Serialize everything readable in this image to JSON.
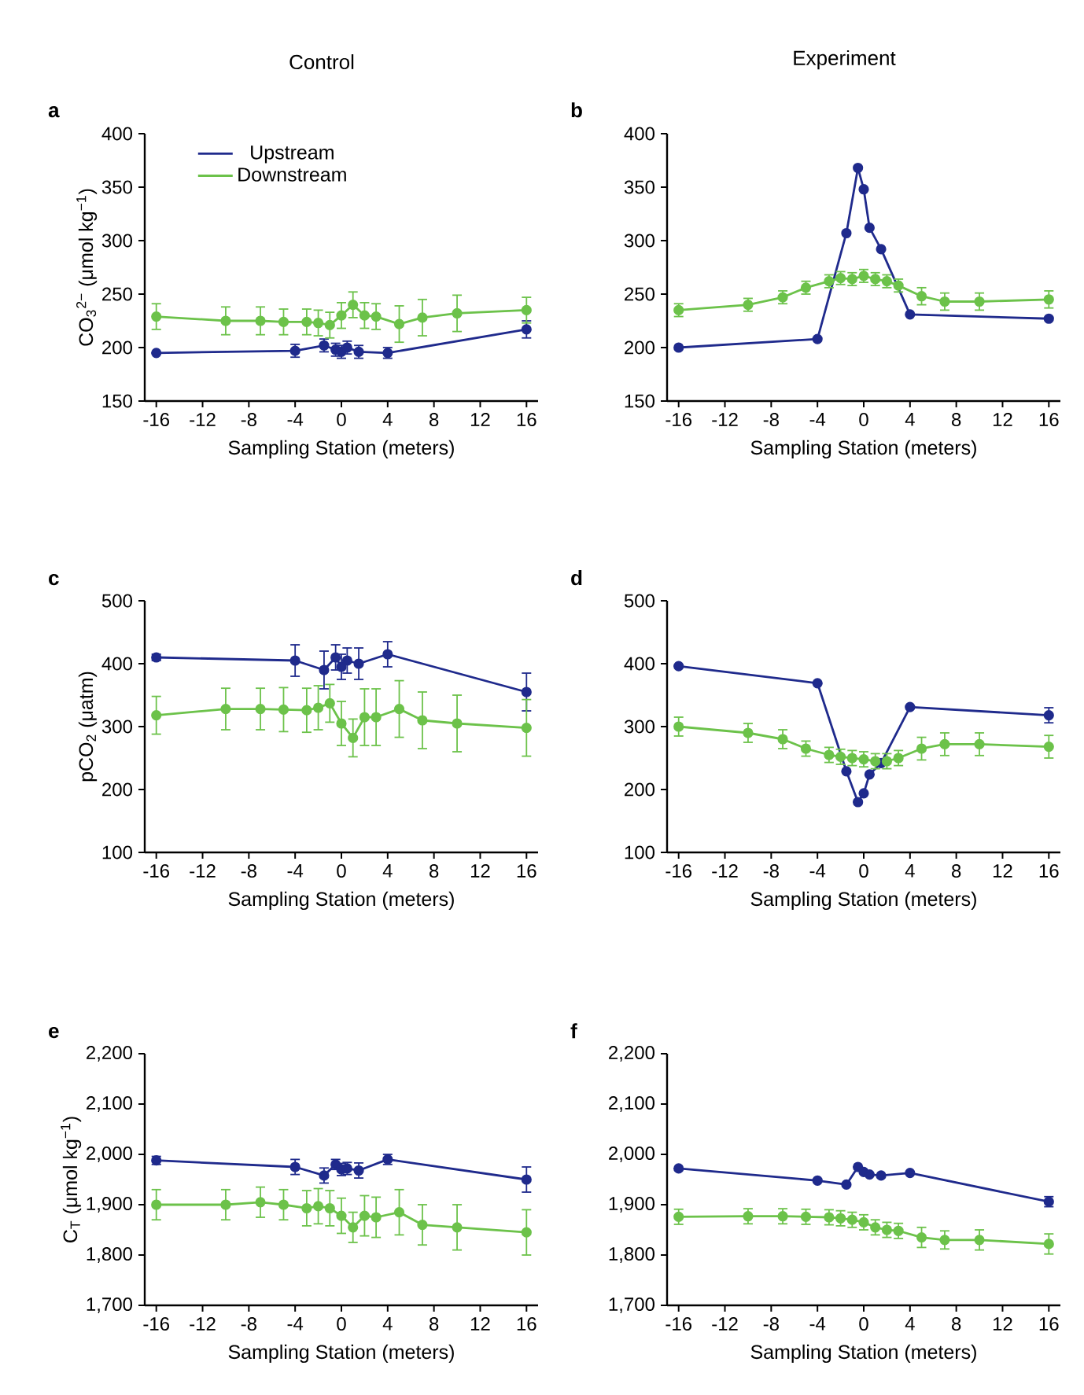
{
  "chart_data": [
    {
      "type": "line",
      "title": "a",
      "subtitle": "Control",
      "xlabel": "Sampling Station (meters)",
      "ylabel": "CO$_{3}$$^{2−}$ (μmol kg$^{−1}$)",
      "xlim": [
        -17,
        17
      ],
      "xticks": [
        -16,
        -12,
        -8,
        -4,
        0,
        4,
        8,
        12,
        16
      ],
      "ylim": [
        150,
        400
      ],
      "yticks": [
        150,
        200,
        250,
        300,
        350,
        400
      ],
      "marker": "circle",
      "legend": "top left",
      "series": [
        {
          "name": "Upstream",
          "color": "#1f2a8c",
          "x": [
            -16,
            -4,
            -1.5,
            -0.5,
            0,
            0.5,
            1.5,
            4,
            16
          ],
          "values": [
            195,
            197,
            202,
            198,
            196,
            200,
            196,
            195,
            217
          ],
          "errors": [
            null,
            6,
            6,
            6,
            6,
            6,
            6,
            5,
            8
          ]
        },
        {
          "name": "Downstream",
          "color": "#6cc24a",
          "x": [
            -16,
            -10,
            -7,
            -5,
            -3,
            -2,
            -1,
            0,
            1,
            2,
            3,
            5,
            7,
            10,
            16
          ],
          "values": [
            229,
            225,
            225,
            224,
            224,
            223,
            221,
            230,
            240,
            230,
            229,
            222,
            228,
            232,
            235
          ],
          "errors": [
            12,
            13,
            13,
            12,
            12,
            12,
            12,
            12,
            12,
            12,
            12,
            17,
            17,
            17,
            12
          ]
        }
      ]
    },
    {
      "type": "line",
      "title": "b",
      "subtitle": "Experiment",
      "xlabel": "Sampling Station (meters)",
      "xlim": [
        -17,
        17
      ],
      "xticks": [
        -16,
        -12,
        -8,
        -4,
        0,
        4,
        8,
        12,
        16
      ],
      "ylim": [
        150,
        400
      ],
      "yticks": [
        150,
        200,
        250,
        300,
        350,
        400
      ],
      "marker": "circle",
      "series": [
        {
          "color": "#1f2a8c",
          "x": [
            -16,
            -4,
            -1.5,
            -0.5,
            0,
            0.5,
            1.5,
            4,
            16
          ],
          "values": [
            200,
            208,
            307,
            368,
            348,
            312,
            292,
            231,
            227
          ]
        },
        {
          "color": "#6cc24a",
          "x": [
            -16,
            -10,
            -7,
            -5,
            -3,
            -2,
            -1,
            0,
            1,
            2,
            3,
            5,
            7,
            10,
            16
          ],
          "values": [
            235,
            240,
            247,
            256,
            262,
            265,
            264,
            267,
            264,
            262,
            258,
            248,
            243,
            243,
            245
          ],
          "errors": [
            6,
            6,
            6,
            6,
            6,
            6,
            6,
            6,
            6,
            6,
            6,
            8,
            8,
            8,
            8
          ]
        }
      ]
    },
    {
      "type": "line",
      "title": "c",
      "xlabel": "Sampling Station (meters)",
      "ylabel": "pCO$_{2}$ (μatm)",
      "xlim": [
        -17,
        17
      ],
      "xticks": [
        -16,
        -12,
        -8,
        -4,
        0,
        4,
        8,
        12,
        16
      ],
      "ylim": [
        100,
        500
      ],
      "yticks": [
        100,
        200,
        300,
        400,
        500
      ],
      "marker": "circle",
      "series": [
        {
          "color": "#1f2a8c",
          "x": [
            -16,
            -4,
            -1.5,
            -0.5,
            0,
            0.5,
            1.5,
            4,
            16
          ],
          "values": [
            410,
            405,
            390,
            410,
            395,
            405,
            400,
            415,
            355
          ],
          "errors": [
            5,
            25,
            30,
            20,
            20,
            20,
            25,
            20,
            30
          ]
        },
        {
          "color": "#6cc24a",
          "x": [
            -16,
            -10,
            -7,
            -5,
            -3,
            -2,
            -1,
            0,
            1,
            2,
            3,
            5,
            7,
            10,
            16
          ],
          "values": [
            318,
            328,
            328,
            327,
            326,
            330,
            337,
            305,
            282,
            315,
            315,
            328,
            310,
            305,
            298
          ],
          "errors": [
            30,
            33,
            33,
            35,
            35,
            35,
            30,
            35,
            30,
            45,
            45,
            45,
            45,
            45,
            45
          ]
        }
      ]
    },
    {
      "type": "line",
      "title": "d",
      "xlabel": "Sampling Station (meters)",
      "xlim": [
        -17,
        17
      ],
      "xticks": [
        -16,
        -12,
        -8,
        -4,
        0,
        4,
        8,
        12,
        16
      ],
      "ylim": [
        100,
        500
      ],
      "yticks": [
        100,
        200,
        300,
        400,
        500
      ],
      "marker": "circle",
      "series": [
        {
          "color": "#1f2a8c",
          "x": [
            -16,
            -4,
            -1.5,
            -0.5,
            0,
            0.5,
            1.5,
            4,
            16
          ],
          "values": [
            396,
            369,
            229,
            180,
            194,
            224,
            242,
            331,
            318
          ],
          "errors": [
            null,
            null,
            null,
            null,
            null,
            null,
            null,
            null,
            12
          ]
        },
        {
          "color": "#6cc24a",
          "x": [
            -16,
            -10,
            -7,
            -5,
            -3,
            -2,
            -1,
            0,
            1,
            2,
            3,
            5,
            7,
            10,
            16
          ],
          "values": [
            300,
            290,
            280,
            265,
            255,
            252,
            250,
            248,
            245,
            245,
            250,
            265,
            272,
            272,
            268
          ],
          "errors": [
            15,
            15,
            15,
            12,
            12,
            12,
            12,
            12,
            12,
            12,
            12,
            18,
            18,
            18,
            18
          ]
        }
      ]
    },
    {
      "type": "line",
      "title": "e",
      "xlabel": "Sampling Station (meters)",
      "ylabel": "C$_{T}$ (μmol kg$^{−1}$)",
      "xlim": [
        -17,
        17
      ],
      "xticks": [
        -16,
        -12,
        -8,
        -4,
        0,
        4,
        8,
        12,
        16
      ],
      "ylim": [
        1700,
        2200
      ],
      "yticks": [
        {
          "value": 1700,
          "label": "1,700"
        },
        {
          "value": 1800,
          "label": "1,800"
        },
        {
          "value": 1900,
          "label": "1,900"
        },
        {
          "value": 2000,
          "label": "2,000"
        },
        {
          "value": 2100,
          "label": "2,100"
        },
        {
          "value": 2200,
          "label": "2,200"
        }
      ],
      "marker": "circle",
      "series": [
        {
          "color": "#1f2a8c",
          "x": [
            -16,
            -4,
            -1.5,
            -0.5,
            0,
            0.5,
            1.5,
            4,
            16
          ],
          "values": [
            1988,
            1975,
            1958,
            1980,
            1970,
            1972,
            1968,
            1990,
            1950
          ],
          "errors": [
            8,
            15,
            15,
            10,
            12,
            12,
            15,
            10,
            25
          ]
        },
        {
          "color": "#6cc24a",
          "x": [
            -16,
            -10,
            -7,
            -5,
            -3,
            -2,
            -1,
            0,
            1,
            2,
            3,
            5,
            7,
            10,
            16
          ],
          "values": [
            1900,
            1900,
            1905,
            1900,
            1893,
            1897,
            1893,
            1878,
            1855,
            1878,
            1875,
            1885,
            1860,
            1855,
            1845
          ],
          "errors": [
            30,
            30,
            30,
            30,
            35,
            35,
            35,
            35,
            30,
            40,
            40,
            45,
            40,
            45,
            45
          ]
        }
      ]
    },
    {
      "type": "line",
      "title": "f",
      "xlabel": "Sampling Station (meters)",
      "xlim": [
        -17,
        17
      ],
      "xticks": [
        -16,
        -12,
        -8,
        -4,
        0,
        4,
        8,
        12,
        16
      ],
      "ylim": [
        1700,
        2200
      ],
      "yticks": [
        {
          "value": 1700,
          "label": "1,700"
        },
        {
          "value": 1800,
          "label": "1,800"
        },
        {
          "value": 1900,
          "label": "1,900"
        },
        {
          "value": 2000,
          "label": "2,000"
        },
        {
          "value": 2100,
          "label": "2,100"
        },
        {
          "value": 2200,
          "label": "2,200"
        }
      ],
      "marker": "circle",
      "series": [
        {
          "color": "#1f2a8c",
          "x": [
            -16,
            -4,
            -1.5,
            -0.5,
            0,
            0.5,
            1.5,
            4,
            16
          ],
          "values": [
            1972,
            1948,
            1940,
            1975,
            1965,
            1960,
            1958,
            1963,
            1906
          ],
          "errors": [
            null,
            null,
            null,
            null,
            null,
            null,
            null,
            null,
            10
          ]
        },
        {
          "color": "#6cc24a",
          "x": [
            -16,
            -10,
            -7,
            -5,
            -3,
            -2,
            -1,
            0,
            1,
            2,
            3,
            5,
            7,
            10,
            16
          ],
          "values": [
            1876,
            1877,
            1877,
            1876,
            1875,
            1873,
            1870,
            1865,
            1855,
            1850,
            1848,
            1835,
            1830,
            1830,
            1822
          ],
          "errors": [
            15,
            15,
            15,
            15,
            15,
            15,
            15,
            15,
            15,
            15,
            15,
            20,
            18,
            20,
            20
          ]
        }
      ]
    }
  ]
}
